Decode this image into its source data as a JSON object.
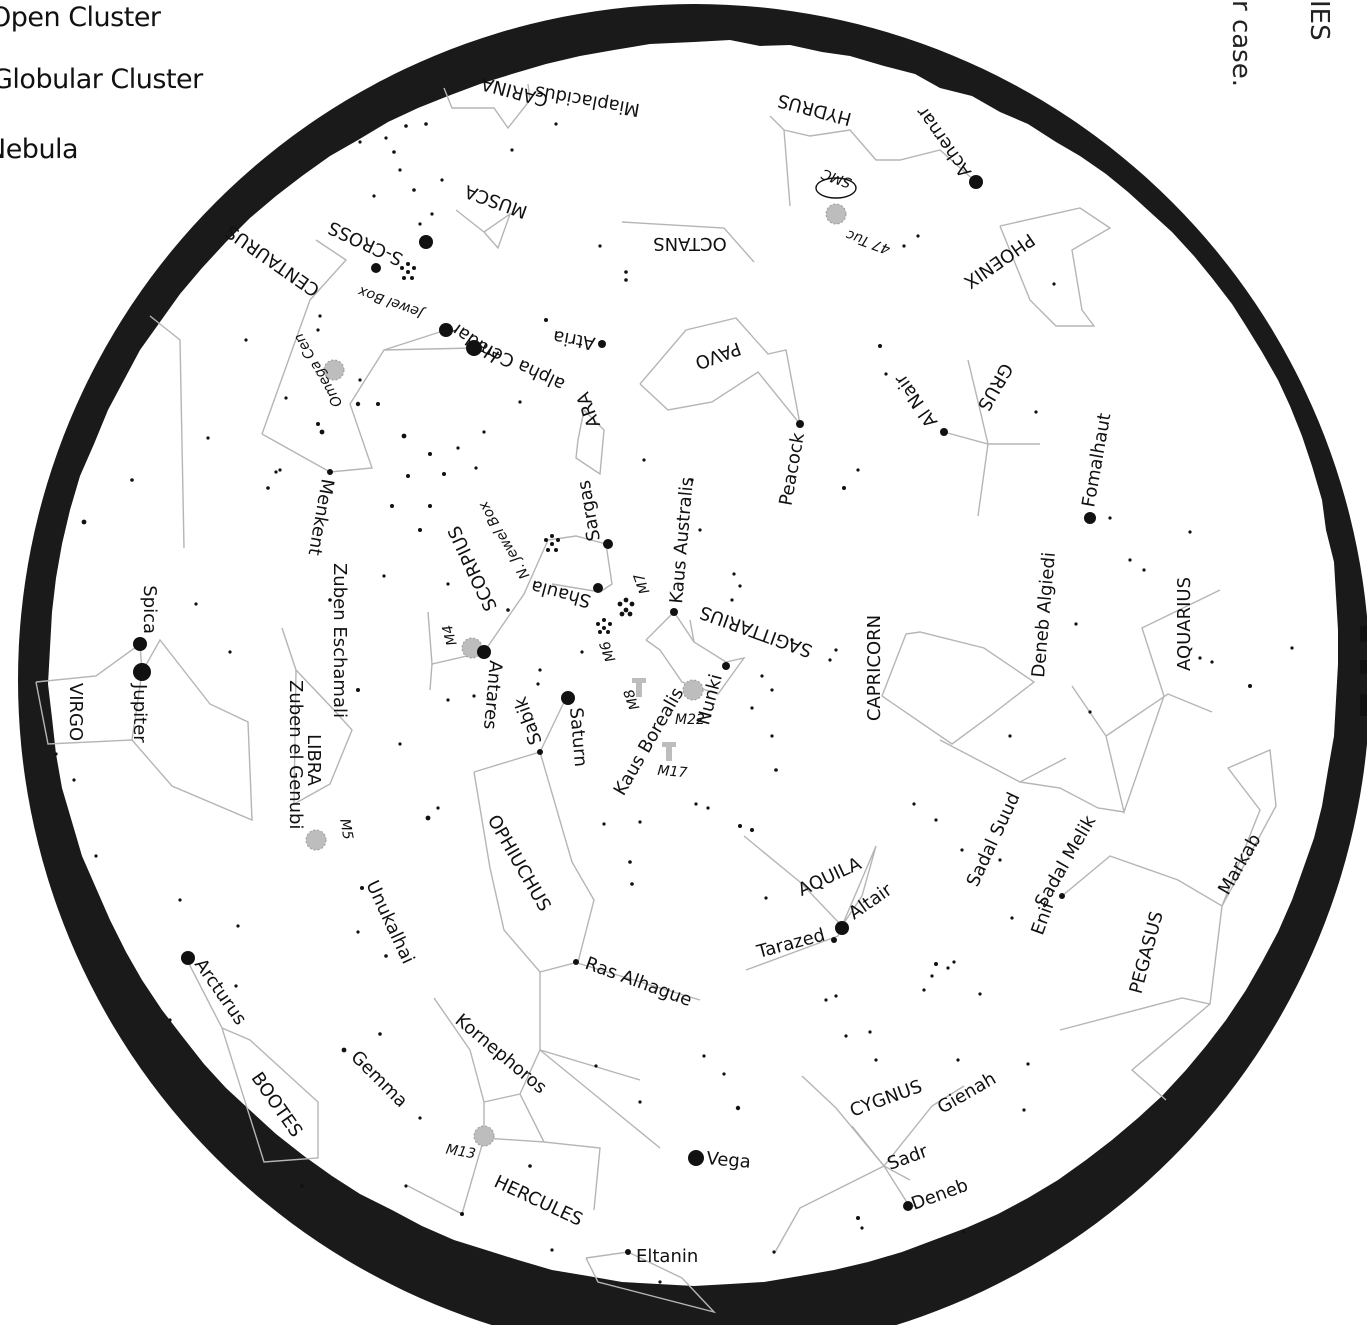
{
  "legend": {
    "open_cluster": "Open Cluster",
    "globular_cluster": "Globular Cluster",
    "nebula": "Nebula"
  },
  "edge_texts": {
    "top_right_1": "IES",
    "top_right_2": "r case."
  },
  "colors": {
    "sky": "#ffffff",
    "border": "#1a1a1a",
    "lines": "#b5b5b5",
    "stars": "#111111",
    "deep_sky": "#bdbdbd"
  },
  "constellations": [
    "CARINA",
    "HYDRUS",
    "MUSCA",
    "CENTAURUS",
    "S-CROSS",
    "OCTANS",
    "PHOENIX",
    "PAVO",
    "ARA",
    "GRUS",
    "SCORPIUS",
    "SAGITTARIUS",
    "CAPRICORN",
    "AQUARIUS",
    "VIRGO",
    "LIBRA",
    "OPHIUCHUS",
    "AQUILA",
    "PEGASUS",
    "CYGNUS",
    "BOOTES",
    "HERCULES"
  ],
  "stars": [
    "Miaplacidus",
    "Achernar",
    "Hadar",
    "alpha Cen",
    "Atria",
    "Peacock",
    "Al Nair",
    "Fomalhaut",
    "Menkent",
    "Sargas",
    "Kaus Australis",
    "Shaula",
    "Antares",
    "Deneb Algiedi",
    "Spica",
    "Jupiter",
    "Zuben Eschamali",
    "Zuben el Genubi",
    "Saturn",
    "Sabik",
    "Kaus Borealis",
    "Nunki",
    "Sadal Suud",
    "Sadal Melik",
    "Markab",
    "Enif",
    "Altair",
    "Tarazed",
    "Unukalhai",
    "Ras Alhague",
    "Arcturus",
    "Gemma",
    "Kornephoros",
    "Vega",
    "Gienah",
    "Sadr",
    "Deneb",
    "Eltanin"
  ],
  "deep_sky": [
    "SMC",
    "47 Tuc",
    "Jewel Box",
    "Omega Cen",
    "N. Jewel Box",
    "M4",
    "M7",
    "M6",
    "M8",
    "M22",
    "M17",
    "M5",
    "M13"
  ]
}
